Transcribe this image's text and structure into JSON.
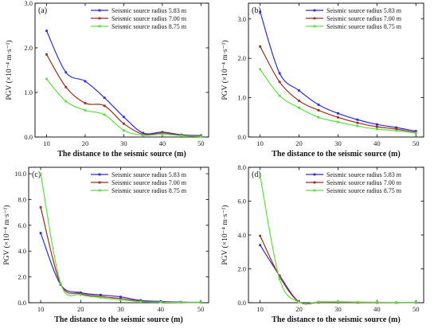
{
  "chart_data": [
    {
      "type": "line",
      "panel_label": "(a)",
      "xlabel": "The distance to the seismic source (m)",
      "ylabel": "PGV (×10⁻⁴ m·s⁻¹)",
      "x": [
        10,
        15,
        20,
        25,
        30,
        35,
        40,
        45,
        50
      ],
      "xlim": [
        7,
        52
      ],
      "ylim": [
        0,
        3.0
      ],
      "xticks": [
        10,
        20,
        30,
        40,
        50
      ],
      "yticks": [
        0.0,
        1.0,
        2.0,
        3.0
      ],
      "ytick_labels": [
        "0.0",
        "1.0",
        "2.0",
        "3.0"
      ],
      "legend": "top-right",
      "series": [
        {
          "name": "Seismic source radius 5.83 m",
          "color": "#2b2bd9",
          "values": [
            2.38,
            1.45,
            1.25,
            0.88,
            0.45,
            0.09,
            0.11,
            0.05,
            0.03
          ]
        },
        {
          "name": "Seismic source radius 7.00 m",
          "color": "#9b2e22",
          "values": [
            1.85,
            1.12,
            0.76,
            0.7,
            0.3,
            0.06,
            0.09,
            0.04,
            0.02
          ]
        },
        {
          "name": "Seismic source radius 8.75 m",
          "color": "#5ce03c",
          "values": [
            1.3,
            0.8,
            0.6,
            0.5,
            0.15,
            0.04,
            0.06,
            0.03,
            0.01
          ]
        }
      ]
    },
    {
      "type": "line",
      "panel_label": "(b)",
      "xlabel": "The distance to the seismic source (m)",
      "ylabel": "PGV (×10⁻⁴ m·s⁻¹)",
      "x": [
        10,
        15,
        20,
        25,
        30,
        35,
        40,
        45,
        50
      ],
      "xlim": [
        7,
        52
      ],
      "ylim": [
        0,
        3.4
      ],
      "xticks": [
        10,
        20,
        30,
        40,
        50
      ],
      "yticks": [
        0.0,
        1.0,
        2.0,
        3.0
      ],
      "ytick_labels": [
        "0.0",
        "1.0",
        "2.0",
        "3.0"
      ],
      "legend": "top-right",
      "series": [
        {
          "name": "Seismic source radius 5.83 m",
          "color": "#2b2bd9",
          "values": [
            3.18,
            1.62,
            1.18,
            0.82,
            0.6,
            0.44,
            0.32,
            0.24,
            0.15
          ]
        },
        {
          "name": "Seismic source radius 7.00 m",
          "color": "#9b2e22",
          "values": [
            2.3,
            1.4,
            0.92,
            0.68,
            0.5,
            0.36,
            0.26,
            0.2,
            0.12
          ]
        },
        {
          "name": "Seismic source radius 8.75 m",
          "color": "#5ce03c",
          "values": [
            1.72,
            1.05,
            0.74,
            0.5,
            0.38,
            0.28,
            0.2,
            0.16,
            0.1
          ]
        }
      ]
    },
    {
      "type": "line",
      "panel_label": "(c)",
      "xlabel": "The distance to the seismic source (m)",
      "ylabel": "PGV (×10⁻⁴ m·s⁻¹)",
      "x": [
        10,
        15,
        20,
        25,
        30,
        35,
        40,
        45,
        50
      ],
      "xlim": [
        7,
        52
      ],
      "ylim": [
        0,
        10.5
      ],
      "xticks": [
        10,
        20,
        30,
        40,
        50
      ],
      "yticks": [
        0.0,
        2.0,
        4.0,
        6.0,
        8.0,
        10.0
      ],
      "ytick_labels": [
        "0.0",
        "2.0",
        "4.0",
        "6.0",
        "8.0",
        "10.0"
      ],
      "legend": "top-right",
      "series": [
        {
          "name": "Seismic source radius 5.83 m",
          "color": "#2b2bd9",
          "values": [
            5.4,
            1.4,
            0.78,
            0.6,
            0.45,
            0.18,
            0.1,
            0.05,
            0.03
          ]
        },
        {
          "name": "Seismic source radius 7.00 m",
          "color": "#9b2e22",
          "values": [
            7.4,
            1.45,
            0.7,
            0.48,
            0.32,
            0.12,
            0.06,
            0.03,
            0.02
          ]
        },
        {
          "name": "Seismic source radius 8.75 m",
          "color": "#5ce03c",
          "values": [
            10.0,
            1.5,
            0.62,
            0.4,
            0.22,
            0.08,
            0.05,
            0.02,
            0.01
          ]
        }
      ]
    },
    {
      "type": "line",
      "panel_label": "(d)",
      "xlabel": "The distance to the seismic source (m)",
      "ylabel": "PGV (×10⁻⁴ m·s⁻¹)",
      "x": [
        10,
        15,
        20,
        25,
        30,
        35,
        40,
        45,
        50
      ],
      "xlim": [
        7,
        52
      ],
      "ylim": [
        0,
        8.0
      ],
      "xticks": [
        10,
        20,
        30,
        40,
        50
      ],
      "yticks": [
        0.0,
        2.0,
        4.0,
        6.0,
        8.0
      ],
      "ytick_labels": [
        "0.0",
        "2.0",
        "4.0",
        "6.0",
        "8.0"
      ],
      "legend": "top-right",
      "series": [
        {
          "name": "Seismic source radius 5.83 m",
          "color": "#2b2bd9",
          "values": [
            3.4,
            1.6,
            0.05,
            0.02,
            0.03,
            0.02,
            0.01,
            0.01,
            0.01
          ]
        },
        {
          "name": "Seismic source radius 7.00 m",
          "color": "#9b2e22",
          "values": [
            3.95,
            1.55,
            0.04,
            0.02,
            0.02,
            0.01,
            0.01,
            0.01,
            0.01
          ]
        },
        {
          "name": "Seismic source radius 8.75 m",
          "color": "#5ce03c",
          "values": [
            7.5,
            1.4,
            0.03,
            0.05,
            0.06,
            0.04,
            0.03,
            0.02,
            0.01
          ]
        }
      ]
    }
  ]
}
